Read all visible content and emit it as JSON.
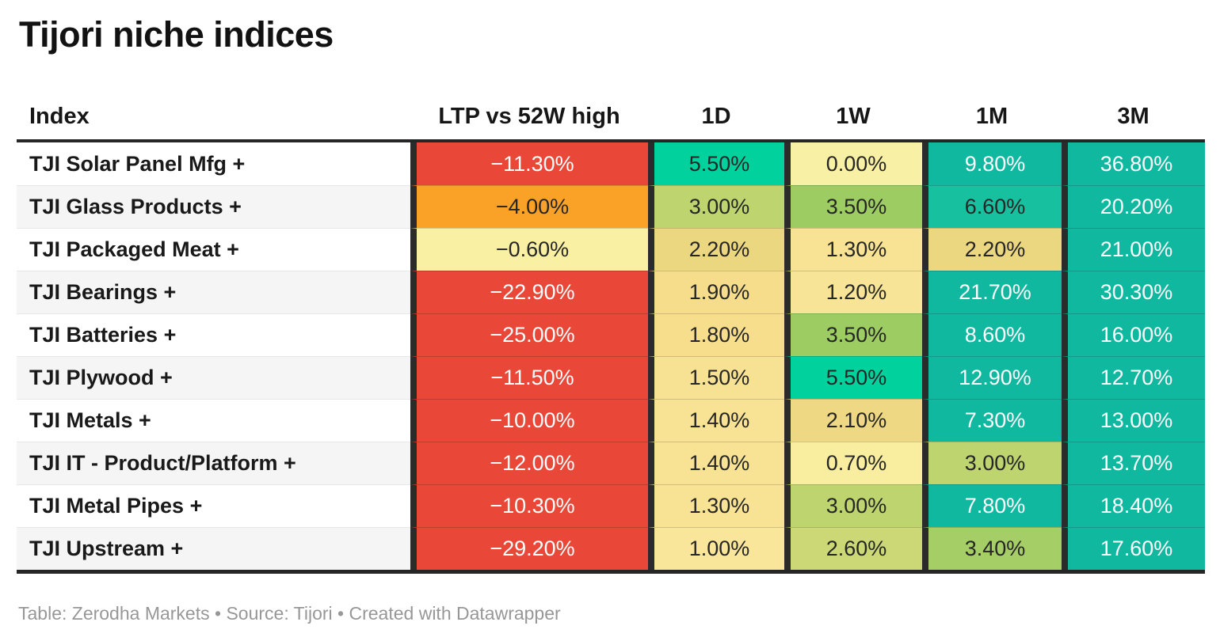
{
  "title": "Tijori niche indices",
  "footer": {
    "text": "Table: Zerodha Markets • Source: Tijori • Created with Datawrapper"
  },
  "colors": {
    "separator_dark": "#2b2b2b",
    "rule_dark": "#262626",
    "row_stripe": "#f5f5f5",
    "red": "#e94738",
    "orange": "#faa128",
    "teal": "#10b8a0",
    "emerald": "#00d19d",
    "footer_gray": "#979797"
  },
  "table": {
    "columns": [
      "Index",
      "LTP vs 52W high",
      "1D",
      "1W",
      "1M",
      "3M"
    ],
    "rows": [
      {
        "name": "TJI Solar Panel Mfg +",
        "values": [
          {
            "text": "−11.30%",
            "bg": "#e94738",
            "fg": "#ffffff"
          },
          {
            "text": "5.50%",
            "bg": "#00d19d",
            "fg": "#262626"
          },
          {
            "text": "0.00%",
            "bg": "#f8f0a4",
            "fg": "#262626"
          },
          {
            "text": "9.80%",
            "bg": "#10b8a0",
            "fg": "#ffffff"
          },
          {
            "text": "36.80%",
            "bg": "#10b8a0",
            "fg": "#ffffff"
          }
        ]
      },
      {
        "name": "TJI Glass Products +",
        "values": [
          {
            "text": "−4.00%",
            "bg": "#faa128",
            "fg": "#262626"
          },
          {
            "text": "3.00%",
            "bg": "#bed46f",
            "fg": "#262626"
          },
          {
            "text": "3.50%",
            "bg": "#9ccc62",
            "fg": "#262626"
          },
          {
            "text": "6.60%",
            "bg": "#17c09e",
            "fg": "#262626"
          },
          {
            "text": "20.20%",
            "bg": "#10b8a0",
            "fg": "#ffffff"
          }
        ]
      },
      {
        "name": "TJI Packaged Meat +",
        "values": [
          {
            "text": "−0.60%",
            "bg": "#f9f0a3",
            "fg": "#262626"
          },
          {
            "text": "2.20%",
            "bg": "#ecd781",
            "fg": "#262626"
          },
          {
            "text": "1.30%",
            "bg": "#f8e395",
            "fg": "#262626"
          },
          {
            "text": "2.20%",
            "bg": "#ecd781",
            "fg": "#262626"
          },
          {
            "text": "21.00%",
            "bg": "#10b8a0",
            "fg": "#ffffff"
          }
        ]
      },
      {
        "name": "TJI Bearings +",
        "values": [
          {
            "text": "−22.90%",
            "bg": "#e94738",
            "fg": "#ffffff"
          },
          {
            "text": "1.90%",
            "bg": "#f6dd8b",
            "fg": "#262626"
          },
          {
            "text": "1.20%",
            "bg": "#f8e496",
            "fg": "#262626"
          },
          {
            "text": "21.70%",
            "bg": "#10b8a0",
            "fg": "#ffffff"
          },
          {
            "text": "30.30%",
            "bg": "#10b8a0",
            "fg": "#ffffff"
          }
        ]
      },
      {
        "name": "TJI Batteries +",
        "values": [
          {
            "text": "−25.00%",
            "bg": "#e94738",
            "fg": "#ffffff"
          },
          {
            "text": "1.80%",
            "bg": "#f6de8d",
            "fg": "#262626"
          },
          {
            "text": "3.50%",
            "bg": "#9ccc62",
            "fg": "#262626"
          },
          {
            "text": "8.60%",
            "bg": "#10b8a0",
            "fg": "#ffffff"
          },
          {
            "text": "16.00%",
            "bg": "#10b8a0",
            "fg": "#ffffff"
          }
        ]
      },
      {
        "name": "TJI Plywood +",
        "values": [
          {
            "text": "−11.50%",
            "bg": "#e94738",
            "fg": "#ffffff"
          },
          {
            "text": "1.50%",
            "bg": "#f7e192",
            "fg": "#262626"
          },
          {
            "text": "5.50%",
            "bg": "#00d19d",
            "fg": "#262626"
          },
          {
            "text": "12.90%",
            "bg": "#10b8a0",
            "fg": "#ffffff"
          },
          {
            "text": "12.70%",
            "bg": "#10b8a0",
            "fg": "#ffffff"
          }
        ]
      },
      {
        "name": "TJI Metals +",
        "values": [
          {
            "text": "−10.00%",
            "bg": "#e94738",
            "fg": "#ffffff"
          },
          {
            "text": "1.40%",
            "bg": "#f8e294",
            "fg": "#262626"
          },
          {
            "text": "2.10%",
            "bg": "#eed884",
            "fg": "#262626"
          },
          {
            "text": "7.30%",
            "bg": "#10b8a0",
            "fg": "#ffffff"
          },
          {
            "text": "13.00%",
            "bg": "#10b8a0",
            "fg": "#ffffff"
          }
        ]
      },
      {
        "name": "TJI IT - Product/Platform +",
        "values": [
          {
            "text": "−12.00%",
            "bg": "#e94738",
            "fg": "#ffffff"
          },
          {
            "text": "1.40%",
            "bg": "#f8e294",
            "fg": "#262626"
          },
          {
            "text": "0.70%",
            "bg": "#f9ee9f",
            "fg": "#262626"
          },
          {
            "text": "3.00%",
            "bg": "#bed46f",
            "fg": "#262626"
          },
          {
            "text": "13.70%",
            "bg": "#10b8a0",
            "fg": "#ffffff"
          }
        ]
      },
      {
        "name": "TJI Metal Pipes +",
        "values": [
          {
            "text": "−10.30%",
            "bg": "#e94738",
            "fg": "#ffffff"
          },
          {
            "text": "1.30%",
            "bg": "#f8e395",
            "fg": "#262626"
          },
          {
            "text": "3.00%",
            "bg": "#bed46f",
            "fg": "#262626"
          },
          {
            "text": "7.80%",
            "bg": "#10b8a0",
            "fg": "#ffffff"
          },
          {
            "text": "18.40%",
            "bg": "#10b8a0",
            "fg": "#ffffff"
          }
        ]
      },
      {
        "name": "TJI Upstream +",
        "values": [
          {
            "text": "−29.20%",
            "bg": "#e94738",
            "fg": "#ffffff"
          },
          {
            "text": "1.00%",
            "bg": "#f9e69a",
            "fg": "#262626"
          },
          {
            "text": "2.60%",
            "bg": "#cbd875",
            "fg": "#262626"
          },
          {
            "text": "3.40%",
            "bg": "#a6ce66",
            "fg": "#262626"
          },
          {
            "text": "17.60%",
            "bg": "#10b8a0",
            "fg": "#ffffff"
          }
        ]
      }
    ]
  },
  "chart_data": {
    "type": "table",
    "title": "Tijori niche indices",
    "columns": [
      "Index",
      "LTP vs 52W high",
      "1D",
      "1W",
      "1M",
      "3M"
    ],
    "units": "percent",
    "rows": [
      [
        "TJI Solar Panel Mfg +",
        -11.3,
        5.5,
        0.0,
        9.8,
        36.8
      ],
      [
        "TJI Glass Products +",
        -4.0,
        3.0,
        3.5,
        6.6,
        20.2
      ],
      [
        "TJI Packaged Meat +",
        -0.6,
        2.2,
        1.3,
        2.2,
        21.0
      ],
      [
        "TJI Bearings +",
        -22.9,
        1.9,
        1.2,
        21.7,
        30.3
      ],
      [
        "TJI Batteries +",
        -25.0,
        1.8,
        3.5,
        8.6,
        16.0
      ],
      [
        "TJI Plywood +",
        -11.5,
        1.5,
        5.5,
        12.9,
        12.7
      ],
      [
        "TJI Metals +",
        -10.0,
        1.4,
        2.1,
        7.3,
        13.0
      ],
      [
        "TJI IT - Product/Platform +",
        -12.0,
        1.4,
        0.7,
        3.0,
        13.7
      ],
      [
        "TJI Metal Pipes +",
        -10.3,
        1.3,
        3.0,
        7.8,
        18.4
      ],
      [
        "TJI Upstream +",
        -29.2,
        1.0,
        2.6,
        3.4,
        17.6
      ]
    ],
    "layout_hints": {
      "heatmap": true,
      "color_scale": "red(-) → orange → pale yellow(0) → yellow-green → emerald → teal(+)",
      "row_striping": true,
      "negative_color": "#e94738",
      "positive_saturated_color": "#10b8a0"
    }
  }
}
